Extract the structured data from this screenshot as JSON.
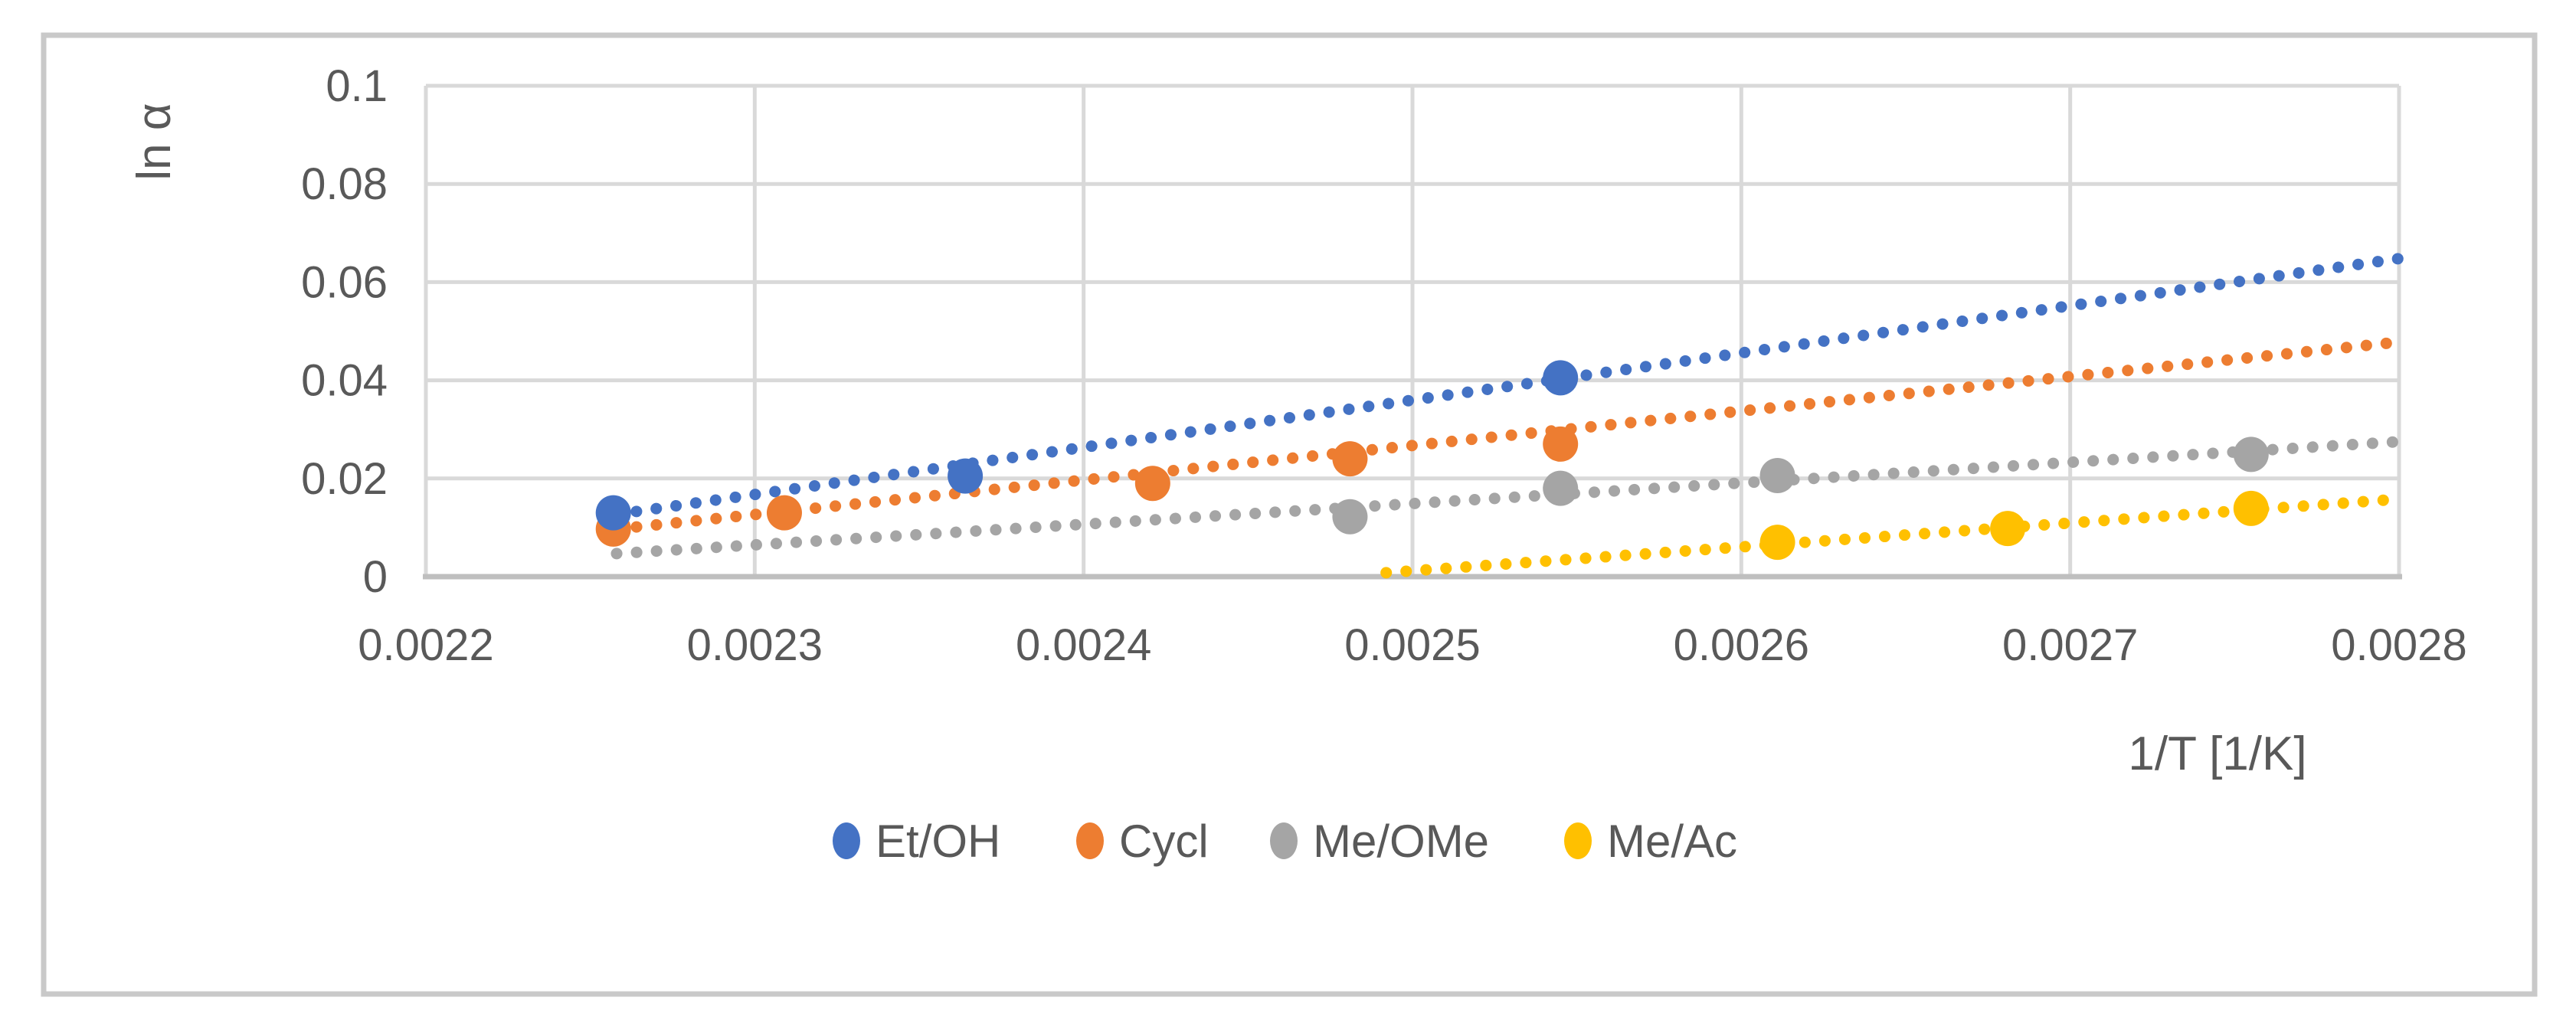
{
  "style": {
    "background": "#FFFFFF",
    "text_color": "#595959",
    "grid_color": "#D9D9D9",
    "axis_color": "#BFBFBF",
    "border_color": "#C9C9C9"
  },
  "chart_data": {
    "type": "scatter",
    "title": "",
    "xlabel": "1/T [1/K]",
    "ylabel": "ln α",
    "xlim": [
      0.0022,
      0.0028
    ],
    "ylim": [
      0,
      0.1
    ],
    "grid": true,
    "legend_position": "bottom",
    "x_tick_values": [
      0.0022,
      0.0023,
      0.0024,
      0.0025,
      0.0026,
      0.0027,
      0.0028
    ],
    "x_tick_labels": [
      "0.0022",
      "0.0023",
      "0.0024",
      "0.0025",
      "0.0026",
      "0.0027",
      "0.0028"
    ],
    "y_tick_values": [
      0,
      0.02,
      0.04,
      0.06,
      0.08,
      0.1
    ],
    "y_tick_labels": [
      "0",
      "0.02",
      "0.04",
      "0.06",
      "0.08",
      "0.1"
    ],
    "series": [
      {
        "name": "Et/OH",
        "color": "#4472C4",
        "points": [
          [
            0.002257,
            0.013
          ],
          [
            0.002364,
            0.0205
          ],
          [
            0.002545,
            0.0405
          ]
        ],
        "trendline": {
          "style": "dotted",
          "x": [
            0.002258,
            0.0028
          ],
          "y": [
            0.0127,
            0.0648
          ]
        }
      },
      {
        "name": "Cycl",
        "color": "#ED7D31",
        "points": [
          [
            0.002257,
            0.0097
          ],
          [
            0.002309,
            0.013
          ],
          [
            0.002421,
            0.019
          ],
          [
            0.002481,
            0.024
          ],
          [
            0.002545,
            0.027
          ]
        ],
        "trendline": {
          "style": "dotted",
          "x": [
            0.002258,
            0.0028
          ],
          "y": [
            0.0097,
            0.0478
          ]
        }
      },
      {
        "name": "Me/OMe",
        "color": "#A5A5A5",
        "points": [
          [
            0.002481,
            0.0122
          ],
          [
            0.002545,
            0.018
          ],
          [
            0.002611,
            0.0206
          ],
          [
            0.002755,
            0.0249
          ]
        ],
        "trendline": {
          "style": "dotted",
          "x": [
            0.002258,
            0.0028
          ],
          "y": [
            0.0047,
            0.0275
          ]
        }
      },
      {
        "name": "Me/Ac",
        "color": "#FFC000",
        "points": [
          [
            0.002611,
            0.007
          ],
          [
            0.002681,
            0.0098
          ],
          [
            0.002755,
            0.0139
          ]
        ],
        "trendline": {
          "style": "dotted",
          "x": [
            0.002492,
            0.0028
          ],
          "y": [
            0.0008,
            0.0158
          ]
        }
      }
    ]
  },
  "legend": {
    "items": [
      {
        "label": "Et/OH",
        "color": "#4472C4"
      },
      {
        "label": "Cycl",
        "color": "#ED7D31"
      },
      {
        "label": "Me/OMe",
        "color": "#A5A5A5"
      },
      {
        "label": "Me/Ac",
        "color": "#FFC000"
      }
    ]
  }
}
